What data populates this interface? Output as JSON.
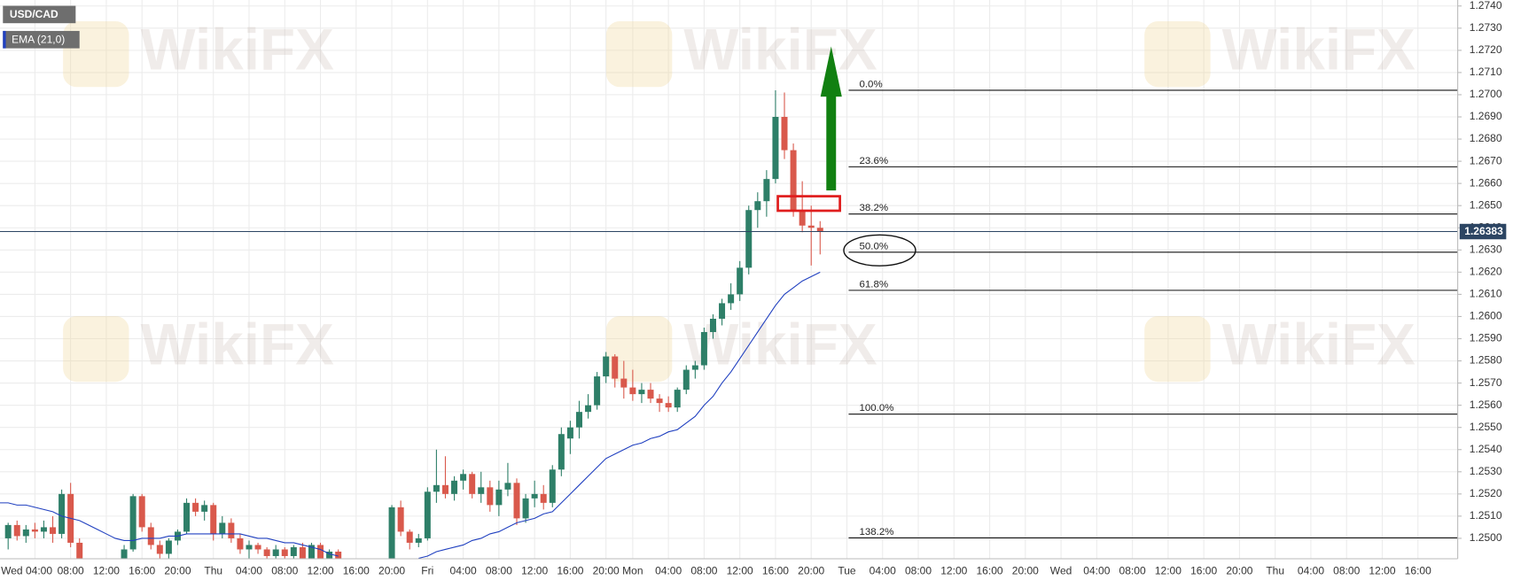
{
  "chart_data": {
    "type": "candlestick",
    "symbol": "USD/CAD",
    "watermark": "WikiFX",
    "up_color": "#2e7f68",
    "down_color": "#d9594c",
    "grid": true,
    "categories": [
      null,
      null,
      null,
      null,
      "Wed 04:00",
      null,
      null,
      null,
      "08:00",
      null,
      null,
      null,
      "12:00",
      null,
      null,
      null,
      "16:00",
      null,
      null,
      null,
      "20:00",
      null,
      null,
      null,
      "Thu",
      null,
      null,
      null,
      "04:00",
      null,
      null,
      null,
      "08:00",
      null,
      null,
      null,
      "12:00",
      null,
      null,
      null,
      "16:00",
      null,
      null,
      null,
      "20:00",
      null,
      null,
      null,
      "Fri",
      null,
      null,
      null,
      "04:00",
      null,
      null,
      null,
      "08:00",
      null,
      null,
      null,
      "12:00",
      null,
      null,
      null,
      "16:00",
      null,
      null,
      null,
      "20:00",
      null,
      null,
      "Mon",
      null,
      null,
      null,
      "04:00",
      null,
      null,
      null,
      "08:00",
      null,
      null,
      null,
      "12:00",
      null,
      null,
      null,
      "16:00",
      null,
      null,
      null,
      "20:00",
      null,
      null,
      null,
      "Tue",
      null,
      null,
      null,
      "04:00",
      null,
      null,
      null,
      "08:00",
      null,
      null,
      null,
      "12:00",
      null,
      null,
      null,
      "16:00",
      null,
      null,
      null,
      "20:00",
      null,
      null,
      null,
      "Wed",
      null,
      null,
      null,
      "04:00",
      null,
      null,
      null,
      "08:00",
      null,
      null,
      null,
      "12:00",
      null,
      null,
      null,
      "16:00",
      null,
      null,
      null,
      "20:00",
      null,
      null,
      null,
      "Thu",
      null,
      null,
      null,
      "04:00",
      null,
      null,
      null,
      "08:00",
      null,
      null,
      null,
      "12:00",
      null,
      null,
      null,
      "16:00",
      null,
      null,
      null,
      null
    ],
    "ohlc": [
      null,
      [
        1.25,
        1.2507,
        1.2495,
        1.2506
      ],
      [
        1.2506,
        1.2508,
        1.2499,
        1.2501
      ],
      [
        1.2501,
        1.2506,
        1.2498,
        1.2504
      ],
      [
        1.2504,
        1.2507,
        1.25,
        1.2503
      ],
      [
        1.2503,
        1.2508,
        1.25,
        1.2505
      ],
      [
        1.2505,
        1.251,
        1.2498,
        1.2502
      ],
      [
        1.2502,
        1.2522,
        1.25,
        1.252
      ],
      [
        1.252,
        1.2525,
        1.2496,
        1.2498
      ],
      [
        1.2498,
        1.25,
        1.2489,
        1.2491
      ],
      null,
      null,
      null,
      null,
      [
        1.2491,
        1.2497,
        1.2489,
        1.2495
      ],
      [
        1.2495,
        1.252,
        1.2494,
        1.2519
      ],
      [
        1.2519,
        1.252,
        1.2503,
        1.2505
      ],
      [
        1.2505,
        1.2507,
        1.2495,
        1.2497
      ],
      [
        1.2497,
        1.2499,
        1.2491,
        1.2493
      ],
      [
        1.2493,
        1.25,
        1.249,
        1.2499
      ],
      [
        1.2499,
        1.2504,
        1.2497,
        1.2503
      ],
      [
        1.2503,
        1.2518,
        1.2502,
        1.2516
      ],
      [
        1.2516,
        1.2518,
        1.251,
        1.2512
      ],
      [
        1.2512,
        1.2517,
        1.2508,
        1.2515
      ],
      [
        1.2515,
        1.2516,
        1.2499,
        1.2502
      ],
      [
        1.2502,
        1.251,
        1.25,
        1.2507
      ],
      [
        1.2507,
        1.2509,
        1.2498,
        1.25
      ],
      [
        1.25,
        1.2502,
        1.2493,
        1.2495
      ],
      [
        1.2495,
        1.2499,
        1.249,
        1.2497
      ],
      [
        1.2497,
        1.2498,
        1.2493,
        1.2495
      ],
      [
        1.2495,
        1.2496,
        1.249,
        1.2492
      ],
      [
        1.2492,
        1.2497,
        1.2489,
        1.2495
      ],
      [
        1.2495,
        1.2496,
        1.249,
        1.2492
      ],
      [
        1.2492,
        1.2497,
        1.249,
        1.2496
      ],
      [
        1.2496,
        1.2498,
        1.249,
        1.2491
      ],
      [
        1.2491,
        1.2498,
        1.2489,
        1.2497
      ],
      [
        1.2497,
        1.2498,
        1.249,
        1.2491
      ],
      [
        1.2491,
        1.2495,
        1.2489,
        1.2494
      ],
      [
        1.2494,
        1.2495,
        1.2488,
        1.2489
      ],
      null,
      null,
      null,
      null,
      null,
      [
        1.2489,
        1.2515,
        1.2488,
        1.2514
      ],
      [
        1.2514,
        1.2517,
        1.2501,
        1.2503
      ],
      [
        1.2503,
        1.2504,
        1.2495,
        1.2498
      ],
      [
        1.2498,
        1.2502,
        1.2496,
        1.25
      ],
      [
        1.25,
        1.2523,
        1.2499,
        1.2521
      ],
      [
        1.2521,
        1.254,
        1.2516,
        1.2524
      ],
      [
        1.2524,
        1.2537,
        1.2518,
        1.252
      ],
      [
        1.252,
        1.2528,
        1.2517,
        1.2526
      ],
      [
        1.2526,
        1.2531,
        1.2522,
        1.2529
      ],
      [
        1.2529,
        1.253,
        1.2518,
        1.252
      ],
      [
        1.252,
        1.253,
        1.2516,
        1.2523
      ],
      [
        1.2523,
        1.2526,
        1.2512,
        1.2515
      ],
      [
        1.2515,
        1.2526,
        1.251,
        1.2522
      ],
      [
        1.2522,
        1.2534,
        1.2519,
        1.2525
      ],
      [
        1.2525,
        1.2527,
        1.2506,
        1.2509
      ],
      [
        1.2509,
        1.252,
        1.2507,
        1.2518
      ],
      [
        1.2518,
        1.2526,
        1.2514,
        1.252
      ],
      [
        1.252,
        1.2524,
        1.2513,
        1.2516
      ],
      [
        1.2516,
        1.2533,
        1.2514,
        1.2531
      ],
      [
        1.2531,
        1.255,
        1.2528,
        1.2547
      ],
      [
        1.2545,
        1.2553,
        1.2538,
        1.255
      ],
      [
        1.255,
        1.2562,
        1.2545,
        1.2557
      ],
      [
        1.2557,
        1.2565,
        1.2554,
        1.256
      ],
      [
        1.256,
        1.2575,
        1.2558,
        1.2573
      ],
      [
        1.2573,
        1.2584,
        1.257,
        1.2582
      ],
      [
        1.2582,
        1.2583,
        1.2568,
        1.2572
      ],
      [
        1.2572,
        1.258,
        1.2563,
        1.2568
      ],
      [
        1.2568,
        1.2576,
        1.2562,
        1.2565
      ],
      [
        1.2565,
        1.257,
        1.2561,
        1.2567
      ],
      [
        1.2567,
        1.257,
        1.2561,
        1.2563
      ],
      [
        1.2563,
        1.2565,
        1.2557,
        1.2561
      ],
      [
        1.2561,
        1.2564,
        1.2557,
        1.2559
      ],
      [
        1.2559,
        1.2568,
        1.2557,
        1.2567
      ],
      [
        1.2567,
        1.2578,
        1.2565,
        1.2576
      ],
      [
        1.2576,
        1.258,
        1.2572,
        1.2578
      ],
      [
        1.2578,
        1.2595,
        1.2576,
        1.2593
      ],
      [
        1.2593,
        1.2601,
        1.259,
        1.2599
      ],
      [
        1.2599,
        1.2608,
        1.2596,
        1.2606
      ],
      [
        1.2606,
        1.2615,
        1.2603,
        1.261
      ],
      [
        1.261,
        1.2625,
        1.2607,
        1.2622
      ],
      [
        1.2622,
        1.265,
        1.2619,
        1.2648
      ],
      [
        1.2648,
        1.2656,
        1.264,
        1.2652
      ],
      [
        1.2652,
        1.2666,
        1.2645,
        1.2662
      ],
      [
        1.2662,
        1.2702,
        1.266,
        1.269
      ],
      [
        1.269,
        1.2701,
        1.2671,
        1.2675
      ],
      [
        1.2675,
        1.2678,
        1.2645,
        1.2648
      ],
      [
        1.2648,
        1.2661,
        1.2638,
        1.2641
      ],
      [
        1.2641,
        1.265,
        1.2623,
        1.264
      ],
      [
        1.264,
        1.2643,
        1.2628,
        1.26383
      ],
      null,
      null,
      null,
      null,
      null,
      null,
      null,
      null,
      null,
      null,
      null,
      null,
      null,
      null,
      null,
      null,
      null,
      null,
      null,
      null,
      null,
      null,
      null,
      null,
      null,
      null,
      null,
      null,
      null,
      null,
      null,
      null,
      null,
      null,
      null,
      null,
      null,
      null,
      null,
      null,
      null,
      null,
      null,
      null,
      null,
      null,
      null,
      null,
      null,
      null,
      null,
      null,
      null,
      null,
      null,
      null,
      null,
      null,
      null,
      null,
      null,
      null,
      null,
      null,
      null,
      null,
      null,
      null,
      null,
      null,
      null
    ],
    "ema": {
      "name": "EMA (21,0)",
      "color": "#2040c0",
      "values": [
        1.2516,
        1.2516,
        1.2515,
        1.2515,
        1.2514,
        1.2513,
        1.2512,
        1.251,
        1.2509,
        1.2508,
        1.2506,
        1.2504,
        1.2502,
        1.25,
        1.2499,
        1.2499,
        1.25,
        1.25,
        1.25,
        1.2501,
        1.2501,
        1.2502,
        1.2502,
        1.2502,
        1.2502,
        1.2502,
        1.2502,
        1.2502,
        1.2501,
        1.25,
        1.25,
        1.2499,
        1.2498,
        1.2498,
        1.2497,
        1.2496,
        1.2495,
        1.2493,
        1.2492,
        null,
        null,
        null,
        null,
        null,
        null,
        null,
        null,
        1.2491,
        1.2492,
        1.2494,
        1.2495,
        1.2496,
        1.2497,
        1.2499,
        1.25,
        1.2502,
        1.2503,
        1.2505,
        1.2507,
        1.2508,
        1.2509,
        1.2511,
        1.2512,
        1.2516,
        1.252,
        1.2524,
        1.2528,
        1.2532,
        1.2536,
        1.2538,
        1.254,
        1.2542,
        1.2543,
        1.2545,
        1.2546,
        1.2548,
        1.2549,
        1.2552,
        1.2555,
        1.256,
        1.2564,
        1.257,
        1.2575,
        1.2581,
        1.2587,
        1.2593,
        1.2599,
        1.2605,
        1.261,
        1.2613,
        1.2616,
        1.2618,
        1.262,
        null,
        null,
        null,
        null,
        null,
        null,
        null,
        null,
        null,
        null,
        null,
        null,
        null,
        null,
        null,
        null,
        null,
        null,
        null,
        null,
        null,
        null,
        null,
        null,
        null,
        null,
        null,
        null,
        null,
        null,
        null,
        null,
        null,
        null,
        null,
        null,
        null,
        null,
        null,
        null,
        null,
        null,
        null,
        null,
        null,
        null,
        null,
        null,
        null,
        null,
        null,
        null,
        null,
        null,
        null,
        null,
        null,
        null,
        null,
        null,
        null,
        null,
        null,
        null,
        null,
        null,
        null,
        null,
        null,
        null,
        null
      ]
    },
    "current_price": 1.26383,
    "current_price_color": "#2c4563",
    "fib_color": "#111111",
    "fib_levels": [
      {
        "label": "0.0%",
        "price": 1.2702
      },
      {
        "label": "23.6%",
        "price": 1.26675
      },
      {
        "label": "38.2%",
        "price": 1.26462
      },
      {
        "label": "50.0%",
        "price": 1.2629
      },
      {
        "label": "61.8%",
        "price": 1.26118
      },
      {
        "label": "100.0%",
        "price": 1.2556
      },
      {
        "label": "138.2%",
        "price": 1.25002
      }
    ],
    "ylim": [
      1.24908,
      1.27427
    ],
    "yticks": [
      {
        "value": 1.25,
        "label": "1.2500"
      },
      {
        "value": 1.251,
        "label": "1.2510"
      },
      {
        "value": 1.252,
        "label": "1.2520"
      },
      {
        "value": 1.253,
        "label": "1.2530"
      },
      {
        "value": 1.254,
        "label": "1.2540"
      },
      {
        "value": 1.255,
        "label": "1.2550"
      },
      {
        "value": 1.256,
        "label": "1.2560"
      },
      {
        "value": 1.257,
        "label": "1.2570"
      },
      {
        "value": 1.258,
        "label": "1.2580"
      },
      {
        "value": 1.259,
        "label": "1.2590"
      },
      {
        "value": 1.26,
        "label": "1.2600"
      },
      {
        "value": 1.261,
        "label": "1.2610"
      },
      {
        "value": 1.262,
        "label": "1.2620"
      },
      {
        "value": 1.263,
        "label": "1.2630"
      },
      {
        "value": 1.264,
        "label": "1.2640"
      },
      {
        "value": 1.265,
        "label": "1.2650"
      },
      {
        "value": 1.266,
        "label": "1.2660"
      },
      {
        "value": 1.267,
        "label": "1.2670"
      },
      {
        "value": 1.268,
        "label": "1.2680"
      },
      {
        "value": 1.269,
        "label": "1.2690"
      },
      {
        "value": 1.27,
        "label": "1.2700"
      },
      {
        "value": 1.271,
        "label": "1.2710"
      },
      {
        "value": 1.272,
        "label": "1.2720"
      },
      {
        "value": 1.273,
        "label": "1.2730"
      },
      {
        "value": 1.274,
        "label": "1.2740"
      }
    ]
  }
}
